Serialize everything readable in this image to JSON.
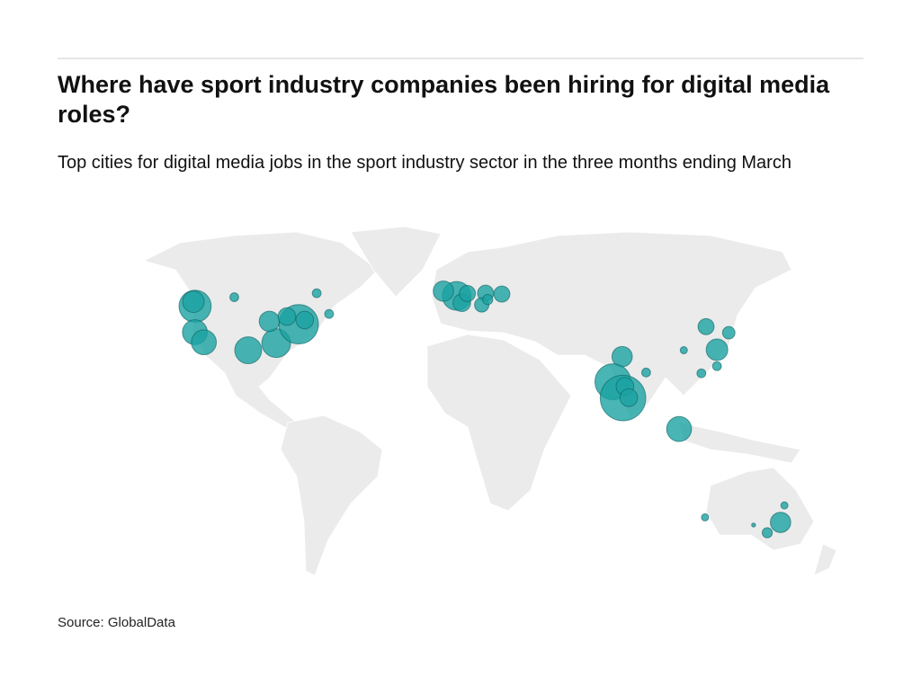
{
  "chart_data": {
    "type": "bubble-map",
    "title": "Where have sport industry companies been hiring for digital media roles?",
    "subtitle": "Top cities for digital media jobs in the sport industry sector in the three months ending March",
    "source": "Source: GlobalData",
    "color": "#1ba3a3",
    "x": [
      -122.3,
      -123.1,
      -104,
      -122.4,
      -118.2,
      -97.5,
      -84.4,
      -87.6,
      -73.9,
      -71.1,
      -79.4,
      -65.5,
      -59.7,
      -0.1,
      -6.3,
      2.3,
      4.9,
      13.4,
      11.6,
      21.0,
      14.4,
      77.2,
      72.9,
      77.6,
      78.5,
      80.3,
      88.4,
      103.8,
      116.4,
      127.0,
      121.5,
      114.2,
      121.5,
      106.0,
      151.2,
      145.0,
      153.0,
      115.9,
      138.6
    ],
    "y": [
      47.6,
      49.3,
      51,
      37.8,
      34.0,
      31.0,
      33.7,
      41.9,
      40.8,
      42.4,
      43.7,
      52.5,
      44.7,
      51.5,
      53.3,
      48.9,
      52.4,
      52.5,
      48.1,
      52.2,
      50.1,
      28.6,
      19.1,
      13.0,
      17.4,
      13.1,
      22.6,
      1.3,
      39.9,
      37.6,
      31.2,
      22.3,
      25.0,
      31.0,
      -33.9,
      -37.8,
      -27.5,
      -32.0,
      -34.9
    ],
    "sizes": [
      20,
      9,
      1.5,
      12,
      12,
      14,
      16,
      8,
      30,
      6,
      6,
      1.5,
      1.5,
      16,
      8,
      6,
      5,
      5,
      4,
      5,
      2,
      8,
      25,
      40,
      6,
      6,
      1.5,
      12,
      5,
      3,
      9,
      1.5,
      1.5,
      1,
      8,
      2,
      1,
      1,
      0.3
    ]
  }
}
